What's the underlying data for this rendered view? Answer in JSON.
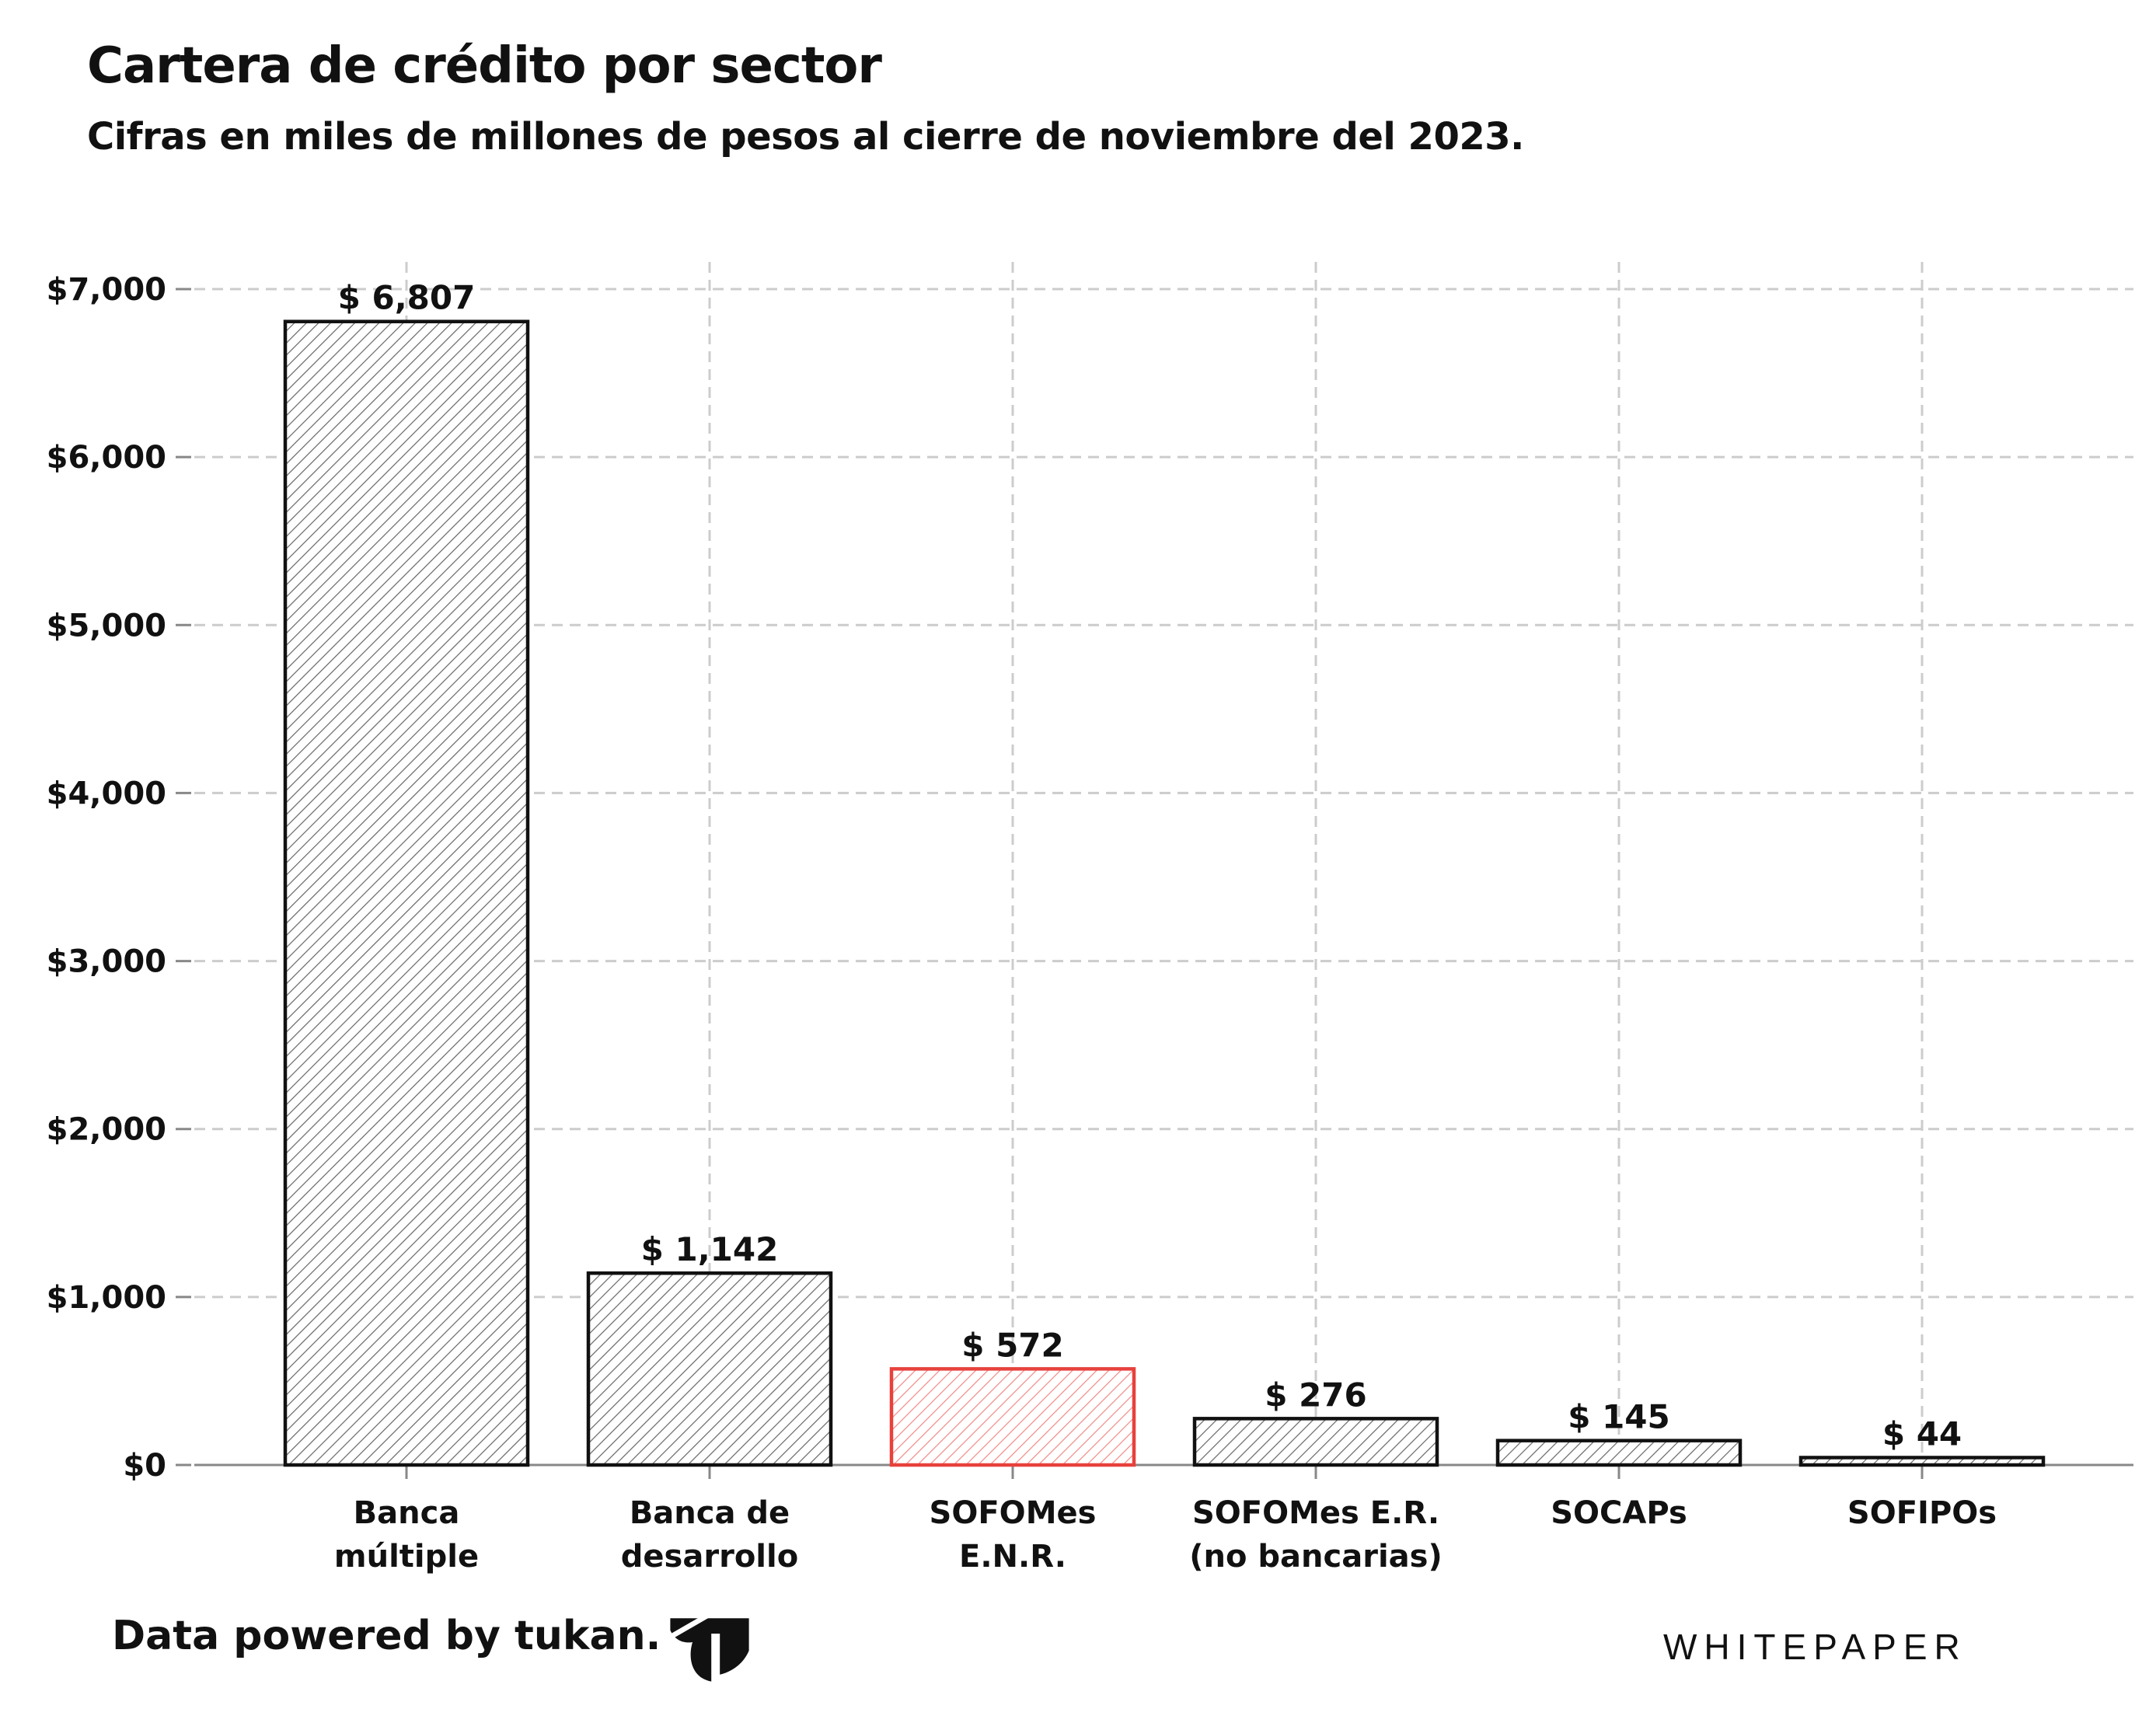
{
  "header": {
    "title": "Cartera de crédito por sector",
    "subtitle": "Cifras en miles de millones de pesos al cierre de noviembre del 2023."
  },
  "chart_data": {
    "type": "bar",
    "title": "Cartera de crédito por sector",
    "subtitle": "Cifras en miles de millones de pesos al cierre de noviembre del 2023.",
    "categories": [
      [
        "Banca",
        "múltiple"
      ],
      [
        "Banca de",
        "desarrollo"
      ],
      [
        "SOFOMes",
        "E.N.R."
      ],
      [
        "SOFOMes E.R.",
        "(no bancarias)"
      ],
      [
        "SOCAPs"
      ],
      [
        "SOFIPOs"
      ]
    ],
    "values": [
      6807,
      1142,
      572,
      276,
      145,
      44
    ],
    "data_labels": [
      "$ 6,807",
      "$ 1,142",
      "$ 572",
      "$ 276",
      "$ 145",
      "$ 44"
    ],
    "highlight": [
      false,
      false,
      true,
      false,
      false,
      false
    ],
    "yticks": [
      0,
      1000,
      2000,
      3000,
      4000,
      5000,
      6000,
      7000
    ],
    "ytick_labels": [
      "$0",
      "$1,000",
      "$2,000",
      "$3,000",
      "$4,000",
      "$5,000",
      "$6,000",
      "$7,000"
    ],
    "ylim": [
      0,
      7000
    ],
    "xlabel": "",
    "ylabel": "",
    "grid": true,
    "legend": "none"
  },
  "colors": {
    "bar_stroke": "#111111",
    "highlight_stroke": "#e8413c",
    "hatch": "#666666",
    "highlight_hatch": "#f08a86",
    "grid": "#cccccc",
    "axis": "#888888"
  },
  "footer": {
    "credit": "Data powered by tukan.",
    "logo_icon": "tukan-logo-icon",
    "brand": "WHITEPAPER"
  }
}
